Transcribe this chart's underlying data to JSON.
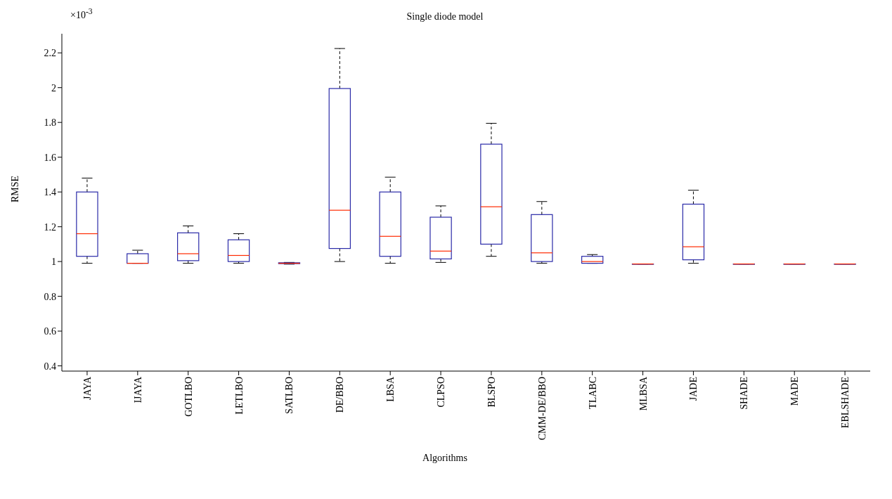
{
  "chart_data": {
    "type": "box",
    "title": "Single diode model",
    "xlabel": "Algorithms",
    "ylabel": "RMSE",
    "annotations": [
      "×10$^{-3}$"
    ],
    "categories": [
      "JAYA",
      "IJAYA",
      "GOTLBO",
      "LETLBO",
      "SATLBO",
      "DE/BBO",
      "LBSA",
      "CLPSO",
      "BLSPO",
      "CMM-DE/BBO",
      "TLABC",
      "MLBSA",
      "JADE",
      "SHADE",
      "MADE",
      "EBLSHADE"
    ],
    "ylim": [
      0.37,
      2.31
    ],
    "yticks": [
      0.4,
      0.6,
      0.8,
      1,
      1.2,
      1.4,
      1.6,
      1.8,
      2,
      2.2
    ],
    "grid": false,
    "series": [
      {
        "color": "#2a2aa8",
        "boxes": [
          {
            "low": 0.99,
            "q1": 1.03,
            "median": 1.16,
            "q3": 1.4,
            "high": 1.48
          },
          {
            "low": 0.99,
            "q1": 0.99,
            "median": 0.99,
            "q3": 1.045,
            "high": 1.065
          },
          {
            "low": 0.99,
            "q1": 1.005,
            "median": 1.045,
            "q3": 1.165,
            "high": 1.205
          },
          {
            "low": 0.99,
            "q1": 1.0,
            "median": 1.035,
            "q3": 1.125,
            "high": 1.16
          },
          {
            "low": 0.985,
            "q1": 0.988,
            "median": 0.99,
            "q3": 0.993,
            "high": 0.995
          },
          {
            "low": 1.0,
            "q1": 1.075,
            "median": 1.295,
            "q3": 1.995,
            "high": 2.225
          },
          {
            "low": 0.99,
            "q1": 1.03,
            "median": 1.145,
            "q3": 1.4,
            "high": 1.485
          },
          {
            "low": 0.995,
            "q1": 1.015,
            "median": 1.06,
            "q3": 1.255,
            "high": 1.32
          },
          {
            "low": 1.03,
            "q1": 1.1,
            "median": 1.315,
            "q3": 1.675,
            "high": 1.795
          },
          {
            "low": 0.99,
            "q1": 1.0,
            "median": 1.05,
            "q3": 1.27,
            "high": 1.345
          },
          {
            "low": 0.99,
            "q1": 0.99,
            "median": 1.0,
            "q3": 1.03,
            "high": 1.04
          },
          {
            "low": 0.986,
            "q1": 0.986,
            "median": 0.986,
            "q3": 0.986,
            "high": 0.986
          },
          {
            "low": 0.99,
            "q1": 1.01,
            "median": 1.085,
            "q3": 1.33,
            "high": 1.41
          },
          {
            "low": 0.986,
            "q1": 0.986,
            "median": 0.986,
            "q3": 0.986,
            "high": 0.986
          },
          {
            "low": 0.986,
            "q1": 0.986,
            "median": 0.986,
            "q3": 0.986,
            "high": 0.986
          },
          {
            "low": 0.986,
            "q1": 0.986,
            "median": 0.986,
            "q3": 0.986,
            "high": 0.986
          }
        ]
      }
    ]
  }
}
